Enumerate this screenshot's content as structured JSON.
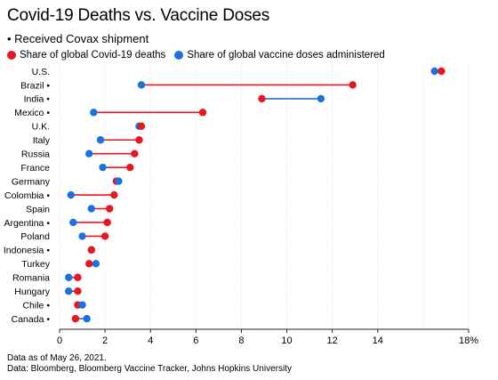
{
  "title": "Covid-19 Deaths vs. Vaccine Doses",
  "subtitle": "• Received Covax shipment",
  "footnote_date": "Data as of May 26, 2021.",
  "footnote_source": "Data: Bloomberg, Bloomberg Vaccine Tracker, Johns Hopkins University",
  "colors": {
    "deaths": "#e8161e",
    "doses": "#1a72e0",
    "grid": "#d0d0d0",
    "axis": "#222222"
  },
  "chart_data": {
    "type": "dumbbell",
    "x_ticks": [
      "0",
      "2",
      "4",
      "6",
      "8",
      "10",
      "12",
      "14",
      "18%"
    ],
    "xlim": [
      0,
      18
    ],
    "series": [
      {
        "name": "Share of global Covid-19 deaths",
        "key": "deaths"
      },
      {
        "name": "Share of global vaccine doses administered",
        "key": "doses"
      }
    ],
    "rows": [
      {
        "label": "U.S.",
        "deaths": 16.8,
        "doses": 16.5
      },
      {
        "label": "Brazil •",
        "deaths": 12.9,
        "doses": 3.6
      },
      {
        "label": "India •",
        "deaths": 8.9,
        "doses": 11.5
      },
      {
        "label": "Mexico •",
        "deaths": 6.3,
        "doses": 1.5
      },
      {
        "label": "U.K.",
        "deaths": 3.6,
        "doses": 3.5
      },
      {
        "label": "Italy",
        "deaths": 3.5,
        "doses": 1.8
      },
      {
        "label": "Russia",
        "deaths": 3.3,
        "doses": 1.3
      },
      {
        "label": "France",
        "deaths": 3.1,
        "doses": 1.9
      },
      {
        "label": "Germany",
        "deaths": 2.5,
        "doses": 2.6
      },
      {
        "label": "Colombia •",
        "deaths": 2.4,
        "doses": 0.5
      },
      {
        "label": "Spain",
        "deaths": 2.2,
        "doses": 1.4
      },
      {
        "label": "Argentina •",
        "deaths": 2.1,
        "doses": 0.6
      },
      {
        "label": "Poland",
        "deaths": 2.0,
        "doses": 1.0
      },
      {
        "label": "Indonesia •",
        "deaths": 1.4,
        "doses": 1.4
      },
      {
        "label": "Turkey",
        "deaths": 1.3,
        "doses": 1.6
      },
      {
        "label": "Romania",
        "deaths": 0.8,
        "doses": 0.4
      },
      {
        "label": "Hungary",
        "deaths": 0.8,
        "doses": 0.4
      },
      {
        "label": "Chile •",
        "deaths": 0.8,
        "doses": 1.0
      },
      {
        "label": "Canada •",
        "deaths": 0.7,
        "doses": 1.2
      }
    ]
  }
}
